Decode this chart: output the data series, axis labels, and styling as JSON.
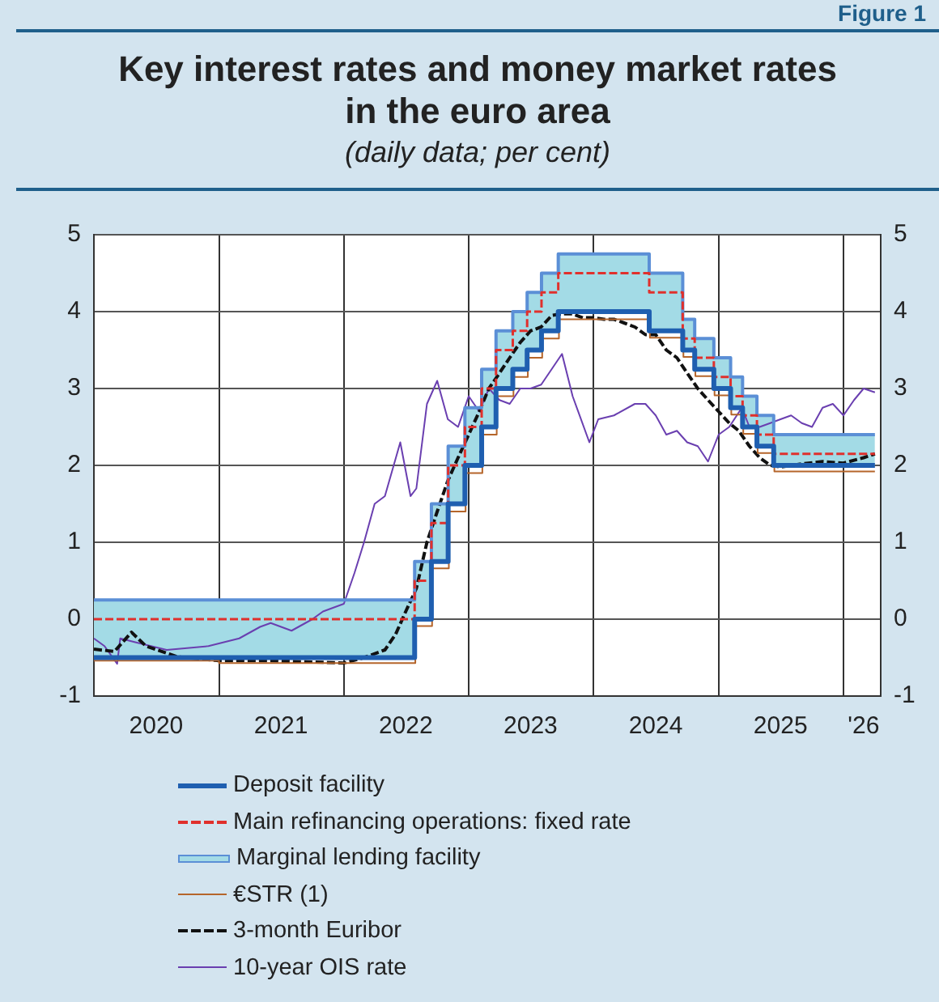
{
  "chart_data": {
    "type": "line",
    "title": "Key interest rates and money market rates in the euro area",
    "subtitle": "(daily data; per cent)",
    "annotations": [
      "Figure 1"
    ],
    "xlim": [
      "2020-01-01",
      "2026-04-20"
    ],
    "xticks": [
      {
        "value": "2020-07-01",
        "label": "2020"
      },
      {
        "value": "2021-01-01",
        "label": null
      },
      {
        "value": "2021-07-01",
        "label": "2021"
      },
      {
        "value": "2022-01-01",
        "label": null
      },
      {
        "value": "2022-07-01",
        "label": "2022"
      },
      {
        "value": "2023-01-01",
        "label": null
      },
      {
        "value": "2023-07-01",
        "label": "2023"
      },
      {
        "value": "2024-01-01",
        "label": null
      },
      {
        "value": "2024-07-01",
        "label": "2024"
      },
      {
        "value": "2025-01-01",
        "label": null
      },
      {
        "value": "2025-07-01",
        "label": "2025"
      },
      {
        "value": "2026-01-01",
        "label": null
      },
      {
        "value": "2026-03-01",
        "label": "'26"
      }
    ],
    "ylim": [
      -1,
      5
    ],
    "yticks": [
      -1,
      0,
      1,
      2,
      3,
      4,
      5
    ],
    "y2lim": [
      -1,
      5
    ],
    "y2ticks": [
      -1,
      0,
      1,
      2,
      3,
      4,
      5
    ],
    "grid": true,
    "legend": "bottom left",
    "series": [
      {
        "name": "Deposit facility",
        "type": "step",
        "color": "#1f5fb0",
        "x": [
          "2020-01-01",
          "2022-07-27",
          "2022-09-14",
          "2022-11-02",
          "2022-12-21",
          "2023-02-08",
          "2023-03-22",
          "2023-05-10",
          "2023-06-21",
          "2023-08-02",
          "2023-09-20",
          "2024-06-12",
          "2024-09-18",
          "2024-10-23",
          "2024-12-18",
          "2025-02-05",
          "2025-03-12",
          "2025-04-23",
          "2025-06-11",
          "2026-04-03"
        ],
        "values": [
          -0.5,
          0,
          0.75,
          1.5,
          2,
          2.5,
          3,
          3.25,
          3.5,
          3.75,
          4,
          3.75,
          3.5,
          3.25,
          3,
          2.75,
          2.5,
          2.25,
          2,
          2
        ]
      },
      {
        "name": "Main refinancing operations: fixed rate",
        "type": "step",
        "color": "#e0302c",
        "line_style": "dashed",
        "x": [
          "2020-01-01",
          "2022-07-27",
          "2022-09-14",
          "2022-11-02",
          "2022-12-21",
          "2023-02-08",
          "2023-03-22",
          "2023-05-10",
          "2023-06-21",
          "2023-08-02",
          "2023-09-20",
          "2024-06-12",
          "2024-09-18",
          "2024-10-23",
          "2024-12-18",
          "2025-02-05",
          "2025-03-12",
          "2025-04-23",
          "2025-06-11",
          "2026-04-03"
        ],
        "values": [
          0,
          0.5,
          1.25,
          2,
          2.5,
          3,
          3.5,
          3.75,
          4,
          4.25,
          4.5,
          4.25,
          3.65,
          3.4,
          3.15,
          2.9,
          2.65,
          2.4,
          2.15,
          2.15
        ]
      },
      {
        "name": "Marginal lending facility",
        "type": "step",
        "color": "#5b8fd6",
        "lower": [
          -0.5,
          0,
          0.75,
          1.5,
          2,
          2.5,
          3,
          3.25,
          3.5,
          3.75,
          4,
          3.75,
          3.5,
          3.25,
          3,
          2.75,
          2.5,
          2.25,
          2,
          2
        ],
        "upper": [
          0.25,
          0.75,
          1.5,
          2.25,
          2.75,
          3.25,
          3.75,
          4,
          4.25,
          4.5,
          4.75,
          4.5,
          3.9,
          3.65,
          3.4,
          3.15,
          2.9,
          2.65,
          2.4,
          2.4
        ],
        "x": [
          "2020-01-01",
          "2022-07-27",
          "2022-09-14",
          "2022-11-02",
          "2022-12-21",
          "2023-02-08",
          "2023-03-22",
          "2023-05-10",
          "2023-06-21",
          "2023-08-02",
          "2023-09-20",
          "2024-06-12",
          "2024-09-18",
          "2024-10-23",
          "2024-12-18",
          "2025-02-05",
          "2025-03-12",
          "2025-04-23",
          "2025-06-11",
          "2026-04-03"
        ],
        "values": [
          0.25,
          0.75,
          1.5,
          2.25,
          2.75,
          3.25,
          3.75,
          4,
          4.25,
          4.5,
          4.75,
          4.5,
          3.9,
          3.65,
          3.4,
          3.15,
          2.9,
          2.65,
          2.4,
          2.4
        ]
      },
      {
        "name": "€STR (1)",
        "type": "step",
        "color": "#b5652a",
        "x": [
          "2020-01-01",
          "2021-01-01",
          "2022-07-29",
          "2022-09-16",
          "2022-11-04",
          "2022-12-23",
          "2023-02-10",
          "2023-03-24",
          "2023-05-12",
          "2023-06-23",
          "2023-08-04",
          "2023-09-22",
          "2024-06-14",
          "2024-09-20",
          "2024-10-25",
          "2024-12-20",
          "2025-02-07",
          "2025-03-14",
          "2025-04-25",
          "2025-06-13",
          "2026-04-03"
        ],
        "values": [
          -0.54,
          -0.57,
          -0.09,
          0.66,
          1.4,
          1.9,
          2.4,
          2.9,
          3.15,
          3.4,
          3.65,
          3.9,
          3.66,
          3.41,
          3.16,
          2.91,
          2.66,
          2.41,
          2.16,
          1.92,
          1.92
        ]
      },
      {
        "name": "3-month Euribor",
        "type": "line",
        "color": "#111111",
        "line_style": "dashed",
        "x": [
          "2020-01-01",
          "2020-03-01",
          "2020-04-20",
          "2020-06-01",
          "2020-09-01",
          "2021-01-01",
          "2021-06-01",
          "2022-01-01",
          "2022-03-01",
          "2022-05-01",
          "2022-06-01",
          "2022-07-01",
          "2022-08-01",
          "2022-09-01",
          "2022-10-01",
          "2022-11-01",
          "2022-12-01",
          "2023-01-01",
          "2023-02-01",
          "2023-03-01",
          "2023-04-01",
          "2023-05-01",
          "2023-06-01",
          "2023-07-01",
          "2023-08-01",
          "2023-09-01",
          "2023-10-01",
          "2023-11-01",
          "2023-12-01",
          "2024-01-01",
          "2024-02-01",
          "2024-03-01",
          "2024-04-01",
          "2024-05-01",
          "2024-06-01",
          "2024-07-01",
          "2024-08-01",
          "2024-09-01",
          "2024-10-01",
          "2024-11-01",
          "2024-12-01",
          "2025-01-01",
          "2025-02-01",
          "2025-03-01",
          "2025-04-01",
          "2025-05-01",
          "2025-06-01",
          "2025-07-01",
          "2025-09-01",
          "2025-11-01",
          "2026-01-01",
          "2026-03-01",
          "2026-04-03"
        ],
        "values": [
          -0.39,
          -0.42,
          -0.17,
          -0.35,
          -0.49,
          -0.54,
          -0.54,
          -0.57,
          -0.5,
          -0.4,
          -0.2,
          0.1,
          0.4,
          1.0,
          1.4,
          1.8,
          2.1,
          2.4,
          2.7,
          3.0,
          3.2,
          3.4,
          3.6,
          3.75,
          3.8,
          3.95,
          3.97,
          3.97,
          3.92,
          3.92,
          3.9,
          3.9,
          3.85,
          3.8,
          3.7,
          3.7,
          3.5,
          3.4,
          3.2,
          3.0,
          2.85,
          2.7,
          2.55,
          2.45,
          2.25,
          2.1,
          2.0,
          1.98,
          2.02,
          2.05,
          2.03,
          2.1,
          2.15
        ]
      },
      {
        "name": "10-year OIS rate",
        "type": "line",
        "color": "#6a3fb0",
        "x": [
          "2020-01-01",
          "2020-02-01",
          "2020-03-09",
          "2020-03-18",
          "2020-05-01",
          "2020-08-01",
          "2020-12-01",
          "2021-03-01",
          "2021-05-01",
          "2021-06-01",
          "2021-08-01",
          "2021-10-01",
          "2021-11-01",
          "2022-01-01",
          "2022-02-01",
          "2022-03-01",
          "2022-04-01",
          "2022-05-01",
          "2022-06-15",
          "2022-07-15",
          "2022-08-01",
          "2022-09-01",
          "2022-10-01",
          "2022-11-01",
          "2022-12-01",
          "2023-01-01",
          "2023-02-01",
          "2023-03-01",
          "2023-04-01",
          "2023-05-01",
          "2023-06-01",
          "2023-07-01",
          "2023-08-01",
          "2023-10-01",
          "2023-11-01",
          "2023-12-20",
          "2024-01-15",
          "2024-03-01",
          "2024-05-01",
          "2024-06-01",
          "2024-07-01",
          "2024-08-01",
          "2024-09-01",
          "2024-10-01",
          "2024-11-01",
          "2024-12-01",
          "2025-01-01",
          "2025-02-01",
          "2025-03-10",
          "2025-04-01",
          "2025-05-01",
          "2025-06-01",
          "2025-07-01",
          "2025-08-01",
          "2025-09-01",
          "2025-10-01",
          "2025-11-01",
          "2025-12-01",
          "2026-01-01",
          "2026-02-01",
          "2026-03-01",
          "2026-04-03"
        ],
        "values": [
          -0.25,
          -0.35,
          -0.58,
          -0.25,
          -0.3,
          -0.4,
          -0.35,
          -0.25,
          -0.1,
          -0.05,
          -0.15,
          0.0,
          0.1,
          0.2,
          0.6,
          1.0,
          1.5,
          1.6,
          2.3,
          1.6,
          1.7,
          2.8,
          3.1,
          2.6,
          2.5,
          2.9,
          2.7,
          3.0,
          2.85,
          2.8,
          3.0,
          3.0,
          3.05,
          3.45,
          2.9,
          2.3,
          2.6,
          2.65,
          2.8,
          2.8,
          2.65,
          2.4,
          2.45,
          2.3,
          2.25,
          2.05,
          2.4,
          2.5,
          2.75,
          2.5,
          2.5,
          2.55,
          2.6,
          2.65,
          2.55,
          2.5,
          2.75,
          2.8,
          2.65,
          2.85,
          3.0,
          2.95
        ]
      }
    ]
  }
}
